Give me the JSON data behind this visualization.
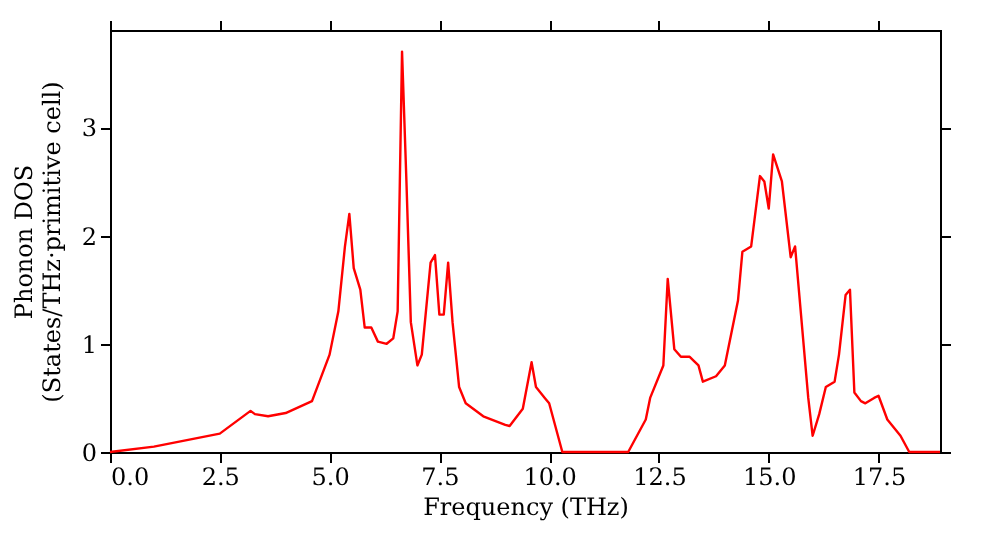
{
  "chart_data": {
    "type": "line",
    "xlabel": "Frequency (THz)",
    "ylabel": "Phonon DOS\n(States/THz·primitive cell)",
    "x": [
      0,
      1,
      2.5,
      3.2,
      3.3,
      3.6,
      4.0,
      4.6,
      5.0,
      5.2,
      5.35,
      5.45,
      5.55,
      5.7,
      5.8,
      5.95,
      6.1,
      6.3,
      6.45,
      6.55,
      6.6,
      6.65,
      6.75,
      6.85,
      7.0,
      7.1,
      7.3,
      7.4,
      7.5,
      7.6,
      7.7,
      7.8,
      7.95,
      8.1,
      8.5,
      9.0,
      9.1,
      9.4,
      9.6,
      9.7,
      9.9,
      10.0,
      10.3,
      11.8,
      12.2,
      12.3,
      12.6,
      12.7,
      12.85,
      13.0,
      13.2,
      13.4,
      13.5,
      13.8,
      14.0,
      14.3,
      14.4,
      14.6,
      14.8,
      14.9,
      15.0,
      15.1,
      15.3,
      15.5,
      15.6,
      15.9,
      16.0,
      16.15,
      16.3,
      16.5,
      16.6,
      16.75,
      16.85,
      16.95,
      17.1,
      17.2,
      17.4,
      17.5,
      17.7,
      18.0,
      18.2,
      18.9
    ],
    "series": [
      {
        "color": "#ff0000",
        "values": [
          0,
          0.05,
          0.17,
          0.38,
          0.35,
          0.33,
          0.36,
          0.47,
          0.9,
          1.3,
          1.9,
          2.2,
          1.7,
          1.5,
          1.15,
          1.15,
          1.02,
          1.0,
          1.05,
          1.3,
          2.5,
          3.7,
          2.5,
          1.2,
          0.8,
          0.9,
          1.75,
          1.82,
          1.27,
          1.27,
          1.75,
          1.2,
          0.6,
          0.45,
          0.33,
          0.25,
          0.24,
          0.4,
          0.83,
          0.6,
          0.5,
          0.45,
          0,
          0,
          0.3,
          0.5,
          0.8,
          1.6,
          0.95,
          0.88,
          0.88,
          0.8,
          0.65,
          0.7,
          0.8,
          1.4,
          1.85,
          1.9,
          2.55,
          2.5,
          2.25,
          2.75,
          2.5,
          1.8,
          1.9,
          0.5,
          0.15,
          0.35,
          0.6,
          0.65,
          0.9,
          1.45,
          1.5,
          0.55,
          0.47,
          0.45,
          0.5,
          0.52,
          0.3,
          0.15,
          0,
          0
        ]
      }
    ],
    "xlim": [
      0,
      18.9
    ],
    "xticks": [
      {
        "value": 0,
        "label": "0.0"
      },
      {
        "value": 2.5,
        "label": "2.5"
      },
      {
        "value": 5,
        "label": "5.0"
      },
      {
        "value": 7.5,
        "label": "7.5"
      },
      {
        "value": 10,
        "label": "10.0"
      },
      {
        "value": 12.5,
        "label": "12.5"
      },
      {
        "value": 15,
        "label": "15.0"
      },
      {
        "value": 17.5,
        "label": "17.5"
      }
    ],
    "ylim": [
      0,
      3.9
    ],
    "yticks": [
      0,
      1,
      2,
      3
    ],
    "grid": false
  }
}
